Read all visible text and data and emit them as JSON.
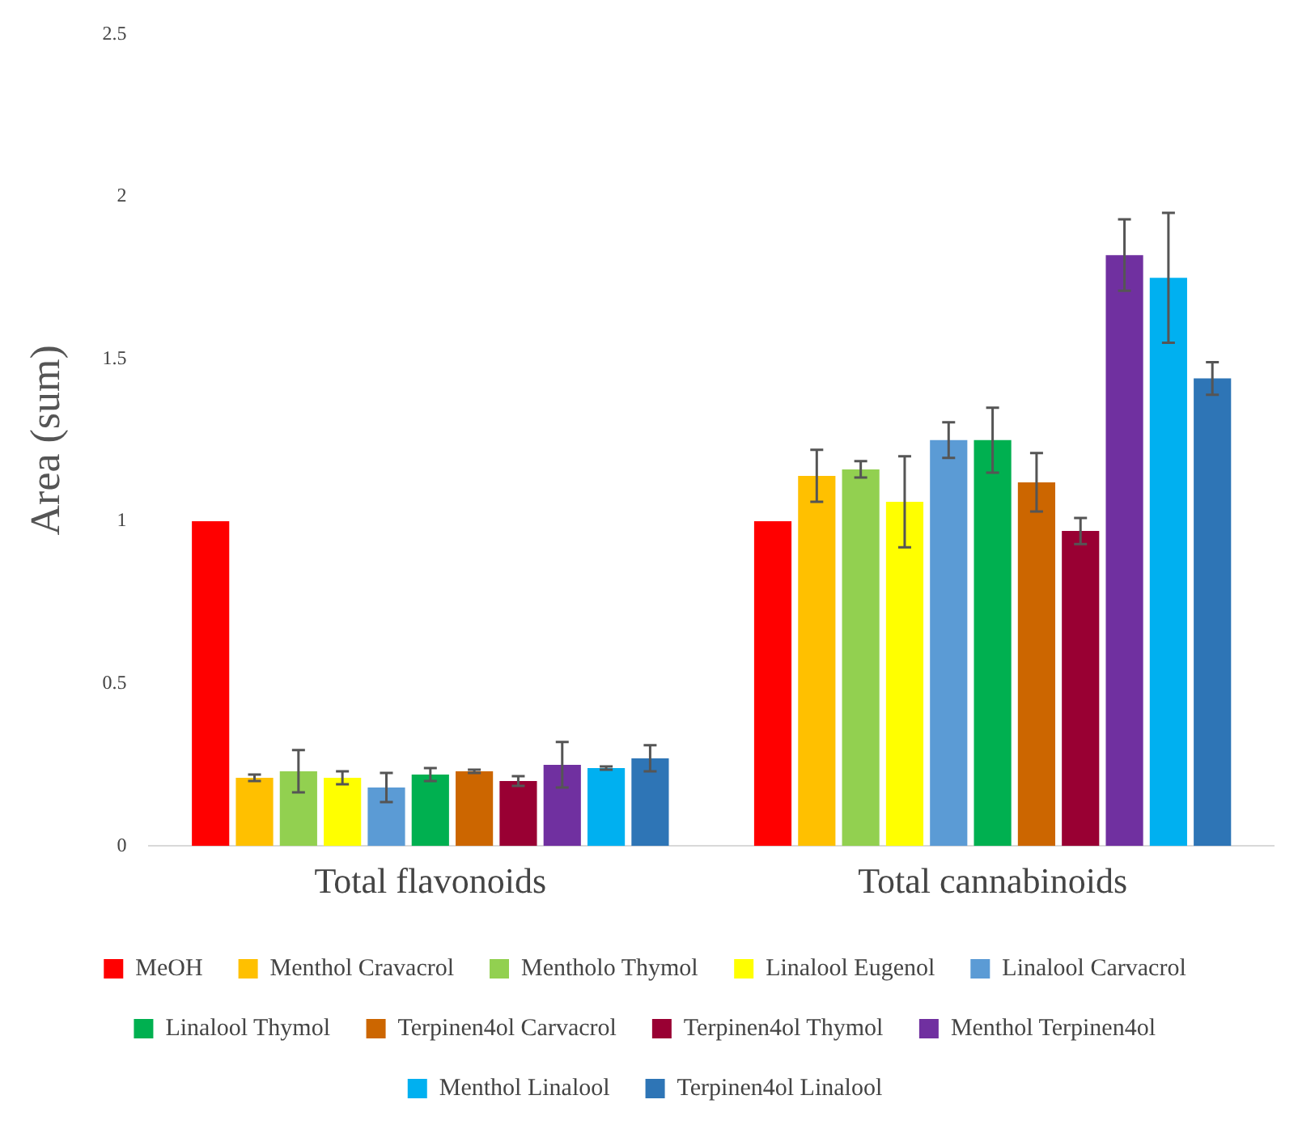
{
  "chart_data": {
    "type": "bar",
    "ylabel": "Area (sum)",
    "categories": [
      "Total flavonoids",
      "Total cannabinoids"
    ],
    "ylim": [
      0,
      2.5
    ],
    "yticks": [
      0,
      0.5,
      1,
      1.5,
      2,
      2.5
    ],
    "grid": false,
    "legend": "bottom",
    "series": [
      {
        "name": "MeOH",
        "color": "#ff0000",
        "values": [
          1.0,
          1.0
        ]
      },
      {
        "name": "Menthol Cravacrol",
        "color": "#ffc000",
        "values": [
          0.21,
          1.14
        ],
        "errors": [
          0.01,
          0.08
        ]
      },
      {
        "name": "Mentholo Thymol",
        "color": "#92d050",
        "values": [
          0.23,
          1.16
        ],
        "errors": [
          0.065,
          0.025
        ]
      },
      {
        "name": "Linalool Eugenol",
        "color": "#ffff00",
        "values": [
          0.21,
          1.06
        ],
        "errors": [
          0.02,
          0.14
        ]
      },
      {
        "name": "Linalool Carvacrol",
        "color": "#5b9bd5",
        "values": [
          0.18,
          1.25
        ],
        "errors": [
          0.045,
          0.055
        ]
      },
      {
        "name": "Linalool Thymol",
        "color": "#00b050",
        "values": [
          0.22,
          1.25
        ],
        "errors": [
          0.02,
          0.1
        ]
      },
      {
        "name": "Terpinen4ol Carvacrol",
        "color": "#cc6600",
        "values": [
          0.23,
          1.12
        ],
        "errors": [
          0.005,
          0.09
        ]
      },
      {
        "name": "Terpinen4ol Thymol",
        "color": "#990033",
        "values": [
          0.2,
          0.97
        ],
        "errors": [
          0.015,
          0.04
        ]
      },
      {
        "name": "Menthol Terpinen4ol",
        "color": "#7030a0",
        "values": [
          0.25,
          1.82
        ],
        "errors": [
          0.07,
          0.11
        ]
      },
      {
        "name": "Menthol Linalool",
        "color": "#00b0f0",
        "values": [
          0.24,
          1.75
        ],
        "errors": [
          0.005,
          0.2
        ]
      },
      {
        "name": "Terpinen4ol Linalool",
        "color": "#2e75b6",
        "values": [
          0.27,
          1.44
        ],
        "errors": [
          0.04,
          0.05
        ]
      }
    ]
  }
}
